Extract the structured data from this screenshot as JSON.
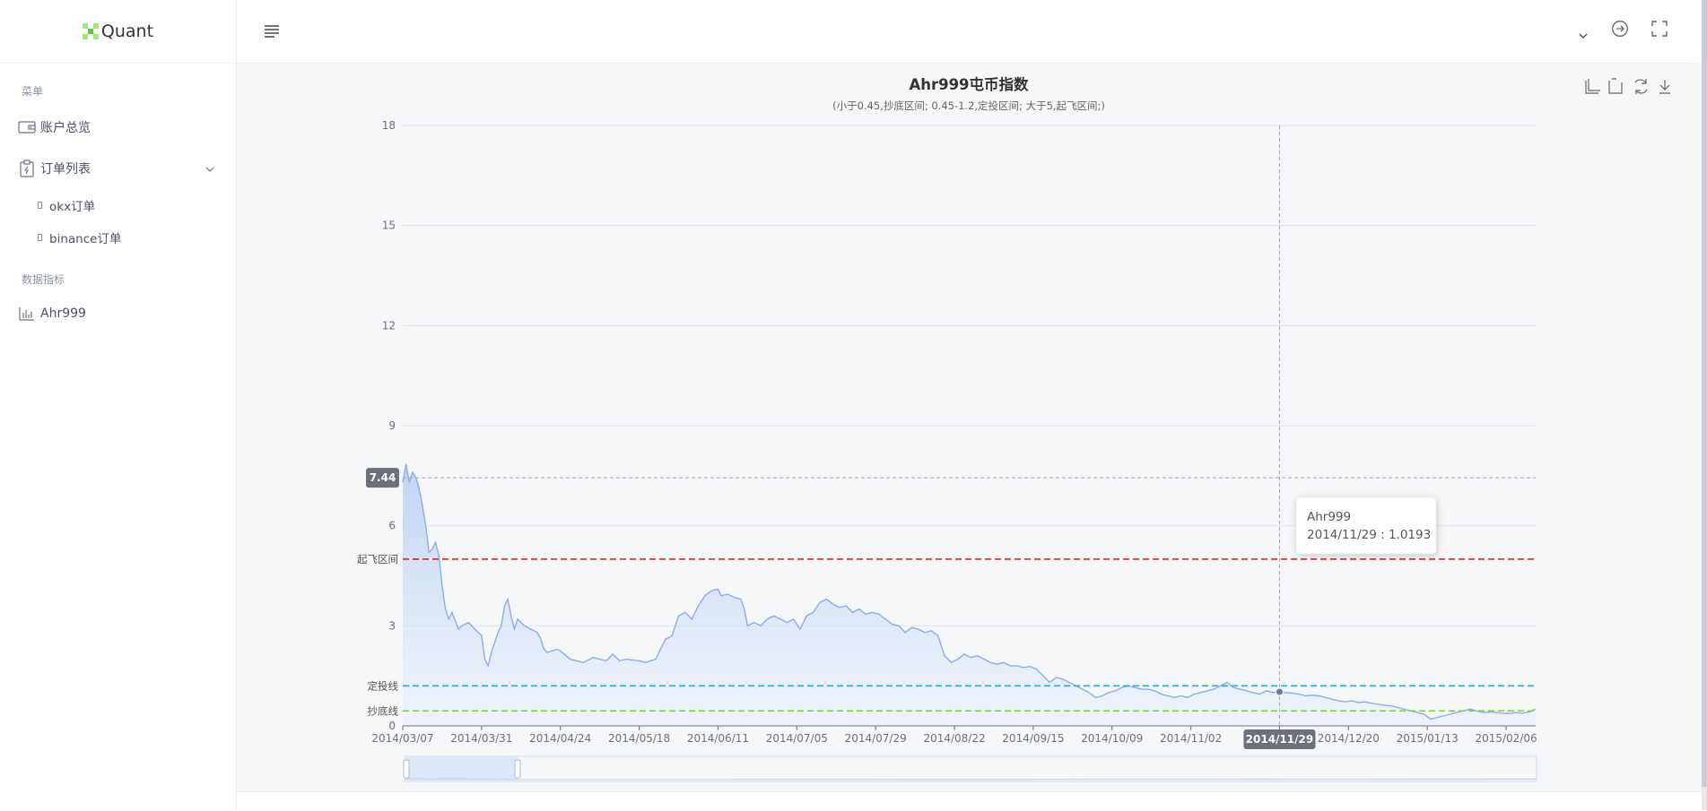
{
  "app": {
    "logo_text": "Quant"
  },
  "sidebar": {
    "section_menu": "菜单",
    "item_overview": "账户总览",
    "item_orders": "订单列表",
    "sub_okx": "okx订单",
    "sub_binance": "binance订单",
    "section_data": "数据指标",
    "item_ahr": "Ahr999"
  },
  "chart_data": {
    "type": "line",
    "title": "Ahr999屯币指数",
    "subtitle": "(小于0.45,抄底区间; 0.45-1.2,定投区间; 大于5,起飞区间;)",
    "series_name": "Ahr999",
    "ylim": [
      0,
      18
    ],
    "yticks": [
      "0",
      "3",
      "6",
      "9",
      "12",
      "15",
      "18"
    ],
    "xticks": [
      "2014/03/07",
      "2014/03/31",
      "2014/04/24",
      "2014/05/18",
      "2014/06/11",
      "2014/07/05",
      "2014/07/29",
      "2014/08/22",
      "2014/09/15",
      "2014/10/09",
      "2014/11/02",
      "2014/11/29",
      "2014/12/20",
      "2015/01/13",
      "2015/02/06"
    ],
    "x_start": "2014/03/07",
    "x_end": "2015/02/15",
    "points": [
      [
        "2014/03/07",
        7.3
      ],
      [
        "2014/03/08",
        7.85
      ],
      [
        "2014/03/09",
        7.3
      ],
      [
        "2014/03/10",
        7.6
      ],
      [
        "2014/03/11",
        7.45
      ],
      [
        "2014/03/12",
        7.1
      ],
      [
        "2014/03/13",
        6.6
      ],
      [
        "2014/03/14",
        6.0
      ],
      [
        "2014/03/15",
        5.2
      ],
      [
        "2014/03/16",
        5.3
      ],
      [
        "2014/03/17",
        5.5
      ],
      [
        "2014/03/18",
        5.1
      ],
      [
        "2014/03/19",
        4.2
      ],
      [
        "2014/03/20",
        3.5
      ],
      [
        "2014/03/21",
        3.2
      ],
      [
        "2014/03/22",
        3.4
      ],
      [
        "2014/03/24",
        2.9
      ],
      [
        "2014/03/25",
        3.0
      ],
      [
        "2014/03/27",
        3.1
      ],
      [
        "2014/03/29",
        2.9
      ],
      [
        "2014/03/31",
        2.7
      ],
      [
        "2014/04/01",
        2.0
      ],
      [
        "2014/04/02",
        1.8
      ],
      [
        "2014/04/03",
        2.2
      ],
      [
        "2014/04/04",
        2.5
      ],
      [
        "2014/04/05",
        2.8
      ],
      [
        "2014/04/06",
        3.0
      ],
      [
        "2014/04/07",
        3.6
      ],
      [
        "2014/04/08",
        3.8
      ],
      [
        "2014/04/09",
        3.3
      ],
      [
        "2014/04/10",
        2.9
      ],
      [
        "2014/04/11",
        3.2
      ],
      [
        "2014/04/13",
        3.0
      ],
      [
        "2014/04/15",
        2.9
      ],
      [
        "2014/04/17",
        2.8
      ],
      [
        "2014/04/18",
        2.6
      ],
      [
        "2014/04/19",
        2.3
      ],
      [
        "2014/04/20",
        2.2
      ],
      [
        "2014/04/23",
        2.3
      ],
      [
        "2014/04/24",
        2.25
      ],
      [
        "2014/04/27",
        2.0
      ],
      [
        "2014/05/01",
        1.9
      ],
      [
        "2014/05/04",
        2.05
      ],
      [
        "2014/05/06",
        2.0
      ],
      [
        "2014/05/08",
        1.95
      ],
      [
        "2014/05/10",
        2.15
      ],
      [
        "2014/05/12",
        1.95
      ],
      [
        "2014/05/14",
        2.0
      ],
      [
        "2014/05/18",
        1.95
      ],
      [
        "2014/05/20",
        1.9
      ],
      [
        "2014/05/23",
        2.0
      ],
      [
        "2014/05/24",
        2.2
      ],
      [
        "2014/05/26",
        2.6
      ],
      [
        "2014/05/28",
        2.7
      ],
      [
        "2014/05/30",
        3.3
      ],
      [
        "2014/06/01",
        3.4
      ],
      [
        "2014/06/03",
        3.2
      ],
      [
        "2014/06/05",
        3.6
      ],
      [
        "2014/06/07",
        3.9
      ],
      [
        "2014/06/09",
        4.05
      ],
      [
        "2014/06/11",
        4.1
      ],
      [
        "2014/06/12",
        3.9
      ],
      [
        "2014/06/14",
        3.95
      ],
      [
        "2014/06/16",
        3.85
      ],
      [
        "2014/06/18",
        3.8
      ],
      [
        "2014/06/19",
        3.5
      ],
      [
        "2014/06/20",
        3.0
      ],
      [
        "2014/06/22",
        3.1
      ],
      [
        "2014/06/24",
        3.0
      ],
      [
        "2014/06/26",
        3.2
      ],
      [
        "2014/06/28",
        3.3
      ],
      [
        "2014/06/30",
        3.2
      ],
      [
        "2014/07/02",
        3.1
      ],
      [
        "2014/07/04",
        3.2
      ],
      [
        "2014/07/06",
        2.9
      ],
      [
        "2014/07/08",
        3.3
      ],
      [
        "2014/07/10",
        3.4
      ],
      [
        "2014/07/12",
        3.7
      ],
      [
        "2014/07/14",
        3.8
      ],
      [
        "2014/07/16",
        3.65
      ],
      [
        "2014/07/18",
        3.55
      ],
      [
        "2014/07/20",
        3.6
      ],
      [
        "2014/07/22",
        3.4
      ],
      [
        "2014/07/24",
        3.5
      ],
      [
        "2014/07/26",
        3.35
      ],
      [
        "2014/07/28",
        3.4
      ],
      [
        "2014/07/30",
        3.35
      ],
      [
        "2014/08/01",
        3.2
      ],
      [
        "2014/08/03",
        3.05
      ],
      [
        "2014/08/05",
        3.0
      ],
      [
        "2014/08/07",
        2.8
      ],
      [
        "2014/08/09",
        2.95
      ],
      [
        "2014/08/11",
        2.9
      ],
      [
        "2014/08/13",
        2.8
      ],
      [
        "2014/08/15",
        2.85
      ],
      [
        "2014/08/17",
        2.7
      ],
      [
        "2014/08/18",
        2.4
      ],
      [
        "2014/08/19",
        2.1
      ],
      [
        "2014/08/21",
        1.9
      ],
      [
        "2014/08/23",
        2.0
      ],
      [
        "2014/08/25",
        2.15
      ],
      [
        "2014/08/27",
        2.05
      ],
      [
        "2014/08/29",
        2.1
      ],
      [
        "2014/08/31",
        2.0
      ],
      [
        "2014/09/02",
        1.9
      ],
      [
        "2014/09/04",
        1.85
      ],
      [
        "2014/09/06",
        1.9
      ],
      [
        "2014/09/08",
        1.8
      ],
      [
        "2014/09/10",
        1.8
      ],
      [
        "2014/09/12",
        1.75
      ],
      [
        "2014/09/14",
        1.78
      ],
      [
        "2014/09/16",
        1.7
      ],
      [
        "2014/09/18",
        1.5
      ],
      [
        "2014/09/20",
        1.3
      ],
      [
        "2014/09/22",
        1.45
      ],
      [
        "2014/09/24",
        1.4
      ],
      [
        "2014/09/26",
        1.3
      ],
      [
        "2014/09/28",
        1.2
      ],
      [
        "2014/09/30",
        1.1
      ],
      [
        "2014/10/02",
        1.0
      ],
      [
        "2014/10/04",
        0.85
      ],
      [
        "2014/10/06",
        0.9
      ],
      [
        "2014/10/08",
        1.0
      ],
      [
        "2014/10/10",
        1.05
      ],
      [
        "2014/10/12",
        1.15
      ],
      [
        "2014/10/14",
        1.2
      ],
      [
        "2014/10/16",
        1.15
      ],
      [
        "2014/10/18",
        1.1
      ],
      [
        "2014/10/20",
        1.1
      ],
      [
        "2014/10/22",
        1.05
      ],
      [
        "2014/10/24",
        0.95
      ],
      [
        "2014/10/26",
        0.9
      ],
      [
        "2014/10/28",
        0.85
      ],
      [
        "2014/10/30",
        0.9
      ],
      [
        "2014/11/01",
        0.85
      ],
      [
        "2014/11/03",
        0.95
      ],
      [
        "2014/11/05",
        1.0
      ],
      [
        "2014/11/07",
        1.05
      ],
      [
        "2014/11/09",
        1.1
      ],
      [
        "2014/11/11",
        1.2
      ],
      [
        "2014/11/13",
        1.3
      ],
      [
        "2014/11/15",
        1.15
      ],
      [
        "2014/11/17",
        1.1
      ],
      [
        "2014/11/19",
        1.05
      ],
      [
        "2014/11/21",
        1.0
      ],
      [
        "2014/11/23",
        0.95
      ],
      [
        "2014/11/25",
        1.05
      ],
      [
        "2014/11/27",
        1.0
      ],
      [
        "2014/11/29",
        1.0193
      ],
      [
        "2014/12/01",
        1.0
      ],
      [
        "2014/12/03",
        0.98
      ],
      [
        "2014/12/05",
        0.95
      ],
      [
        "2014/12/07",
        0.9
      ],
      [
        "2014/12/09",
        0.92
      ],
      [
        "2014/12/11",
        0.9
      ],
      [
        "2014/12/13",
        0.85
      ],
      [
        "2014/12/15",
        0.8
      ],
      [
        "2014/12/17",
        0.75
      ],
      [
        "2014/12/19",
        0.72
      ],
      [
        "2014/12/21",
        0.75
      ],
      [
        "2014/12/23",
        0.7
      ],
      [
        "2014/12/25",
        0.72
      ],
      [
        "2014/12/27",
        0.68
      ],
      [
        "2014/12/29",
        0.65
      ],
      [
        "2014/12/31",
        0.62
      ],
      [
        "2015/01/02",
        0.6
      ],
      [
        "2015/01/04",
        0.55
      ],
      [
        "2015/01/06",
        0.5
      ],
      [
        "2015/01/08",
        0.45
      ],
      [
        "2015/01/10",
        0.4
      ],
      [
        "2015/01/12",
        0.35
      ],
      [
        "2015/01/14",
        0.2
      ],
      [
        "2015/01/16",
        0.25
      ],
      [
        "2015/01/18",
        0.3
      ],
      [
        "2015/01/20",
        0.35
      ],
      [
        "2015/01/22",
        0.4
      ],
      [
        "2015/01/24",
        0.45
      ],
      [
        "2015/01/26",
        0.5
      ],
      [
        "2015/01/28",
        0.45
      ],
      [
        "2015/01/30",
        0.4
      ],
      [
        "2015/02/01",
        0.42
      ],
      [
        "2015/02/03",
        0.4
      ],
      [
        "2015/02/05",
        0.38
      ],
      [
        "2015/02/07",
        0.37
      ],
      [
        "2015/02/09",
        0.4
      ],
      [
        "2015/02/11",
        0.38
      ],
      [
        "2015/02/13",
        0.42
      ],
      [
        "2015/02/15",
        0.5
      ]
    ],
    "mark_lines": [
      {
        "label": "起飞区间",
        "value": 5,
        "color": "#e02424"
      },
      {
        "label": "定投线",
        "value": 1.2,
        "color": "#18b3e0"
      },
      {
        "label": "抄底线",
        "value": 0.45,
        "color": "#7ed321"
      }
    ],
    "pointer": {
      "y_label": "7.44",
      "y_value": 7.44,
      "x_label": "2014/11/29",
      "x_value": "2014/11/29"
    },
    "tooltip": {
      "series": "Ahr999",
      "text": "2014/11/29 : 1.0193"
    },
    "line_color": "#8cadec"
  }
}
